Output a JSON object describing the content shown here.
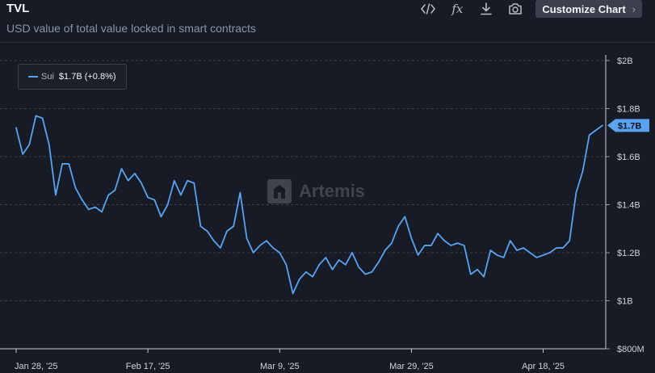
{
  "header": {
    "title": "TVL",
    "subtitle": "USD value of total value locked in smart contracts"
  },
  "toolbar": {
    "icons": [
      "code-icon",
      "fx-icon",
      "download-icon",
      "camera-icon"
    ],
    "fx_label": "fx",
    "customize_label": "Customize Chart"
  },
  "legend": {
    "series_name": "Sui",
    "series_value": "$1.7B (+0.8%)"
  },
  "watermark": {
    "text": "Artemis"
  },
  "colors": {
    "line": "#5aa3f0",
    "background": "#171b26",
    "grid": "#3a3f4c"
  },
  "chart_data": {
    "type": "line",
    "title": "TVL",
    "subtitle": "USD value of total value locked in smart contracts",
    "x_start": "2025-01-28",
    "x_tick_labels": [
      "Jan 28, '25",
      "Feb 17, '25",
      "Mar 9, '25",
      "Mar 29, '25",
      "Apr 18, '25"
    ],
    "y_tick_labels": [
      "$800M",
      "$1B",
      "$1.2B",
      "$1.4B",
      "$1.6B",
      "$1.8B",
      "$2B"
    ],
    "y_ticks": [
      0.8,
      1.0,
      1.2,
      1.4,
      1.6,
      1.8,
      2.0
    ],
    "ylim": [
      0.8,
      2.0
    ],
    "y_unit": "B USD",
    "current_label": "$1.7B",
    "grid": true,
    "legend_position": "top-left",
    "series": [
      {
        "name": "Sui",
        "values": [
          1.72,
          1.61,
          1.65,
          1.77,
          1.76,
          1.65,
          1.44,
          1.57,
          1.57,
          1.47,
          1.42,
          1.38,
          1.39,
          1.37,
          1.44,
          1.46,
          1.55,
          1.5,
          1.53,
          1.49,
          1.43,
          1.42,
          1.35,
          1.4,
          1.5,
          1.44,
          1.5,
          1.49,
          1.31,
          1.29,
          1.25,
          1.22,
          1.29,
          1.31,
          1.45,
          1.26,
          1.2,
          1.23,
          1.25,
          1.22,
          1.2,
          1.15,
          1.03,
          1.09,
          1.12,
          1.1,
          1.15,
          1.18,
          1.13,
          1.17,
          1.15,
          1.2,
          1.14,
          1.11,
          1.12,
          1.16,
          1.21,
          1.24,
          1.31,
          1.35,
          1.26,
          1.19,
          1.23,
          1.23,
          1.28,
          1.25,
          1.23,
          1.24,
          1.23,
          1.11,
          1.13,
          1.1,
          1.21,
          1.19,
          1.18,
          1.25,
          1.21,
          1.22,
          1.2,
          1.18,
          1.19,
          1.2,
          1.22,
          1.22,
          1.25,
          1.45,
          1.54,
          1.69,
          1.71,
          1.73
        ]
      }
    ]
  }
}
